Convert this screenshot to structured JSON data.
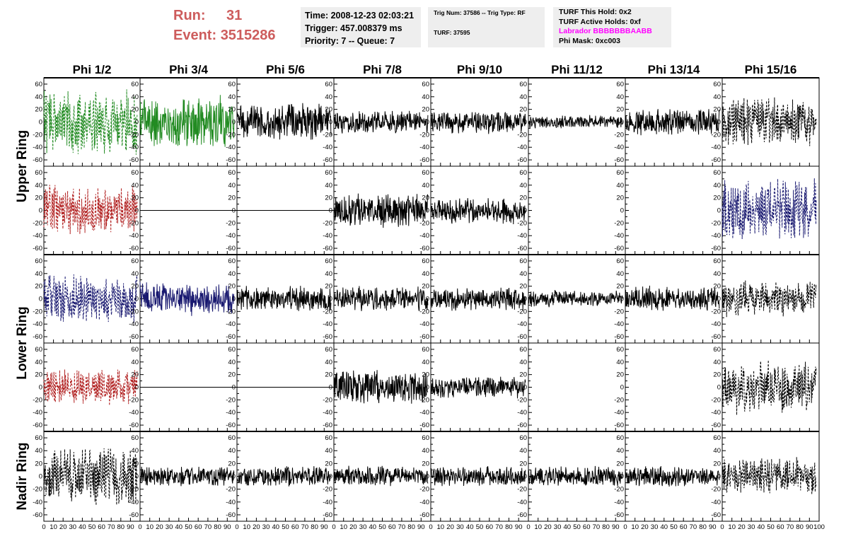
{
  "header": {
    "run_label": "Run:",
    "run_value": "31",
    "event_label": "Event:",
    "event_value": "3515286",
    "time": "Time: 2008-12-23 02:03:21",
    "trigger": "Trigger: 457.008379 ms",
    "priority": "Priority: 7 -- Queue: 7",
    "trig_num": "Trig Num: 37586 -- Trig Type: RF",
    "turf": "TURF: 37595",
    "turf_this_hold": "TURF This Hold: 0x2",
    "turf_active_holds": "TURF Active Holds: 0xf",
    "labrador": "Labrador BBBBBBBAABB",
    "phi_mask": "Phi Mask: 0xc003",
    "labrador_color": "#ff00ff",
    "run_color": "#cd5c5c"
  },
  "chart_data": {
    "type": "line",
    "title": "",
    "columns": [
      "Phi 1/2",
      "Phi 3/4",
      "Phi 5/6",
      "Phi 7/8",
      "Phi 9/10",
      "Phi 11/12",
      "Phi 13/14",
      "Phi 15/16"
    ],
    "ring_labels": [
      {
        "label": "Upper Ring",
        "rows": [
          0,
          1
        ]
      },
      {
        "label": "Lower Ring",
        "rows": [
          2,
          3
        ]
      },
      {
        "label": "Nadir Ring",
        "rows": [
          4
        ]
      }
    ],
    "xlim": [
      0,
      100
    ],
    "ylim": [
      -70,
      70
    ],
    "x_ticks": [
      0,
      10,
      20,
      30,
      40,
      50,
      60,
      70,
      80,
      90,
      100
    ],
    "y_ticks": [
      -60,
      -40,
      -20,
      0,
      20,
      40,
      60
    ],
    "waveform_x_range": [
      0,
      97
    ],
    "panels": [
      [
        {
          "color": "#228b22",
          "dashed": true,
          "amp": 38,
          "sd": 1
        },
        {
          "color": "#228b22",
          "dashed": false,
          "amp": 32,
          "sd": 2
        },
        {
          "color": "#000000",
          "dashed": false,
          "amp": 22,
          "sd": 3
        },
        {
          "color": "#000000",
          "dashed": false,
          "amp": 14,
          "sd": 4
        },
        {
          "color": "#000000",
          "dashed": false,
          "amp": 14,
          "sd": 5
        },
        {
          "color": "#000000",
          "dashed": false,
          "amp": 8,
          "sd": 6
        },
        {
          "color": "#000000",
          "dashed": false,
          "amp": 16,
          "sd": 7
        },
        {
          "color": "#000000",
          "dashed": true,
          "amp": 30,
          "sd": 8
        }
      ],
      [
        {
          "color": "#b22222",
          "dashed": true,
          "amp": 30,
          "sd": 11
        },
        {
          "color": "#000000",
          "dashed": false,
          "amp": 0,
          "sd": 12
        },
        {
          "color": "#000000",
          "dashed": false,
          "amp": 0,
          "sd": 13
        },
        {
          "color": "#000000",
          "dashed": false,
          "amp": 20,
          "sd": 14
        },
        {
          "color": "#000000",
          "dashed": false,
          "amp": 16,
          "sd": 15
        },
        null,
        null,
        {
          "color": "#191970",
          "dashed": true,
          "amp": 38,
          "sd": 18
        }
      ],
      [
        {
          "color": "#191970",
          "dashed": true,
          "amp": 32,
          "sd": 21
        },
        {
          "color": "#191970",
          "dashed": false,
          "amp": 20,
          "sd": 22
        },
        {
          "color": "#000000",
          "dashed": false,
          "amp": 15,
          "sd": 23
        },
        {
          "color": "#000000",
          "dashed": false,
          "amp": 15,
          "sd": 24
        },
        {
          "color": "#000000",
          "dashed": false,
          "amp": 14,
          "sd": 25
        },
        {
          "color": "#000000",
          "dashed": false,
          "amp": 10,
          "sd": 26
        },
        {
          "color": "#000000",
          "dashed": false,
          "amp": 15,
          "sd": 27
        },
        {
          "color": "#000000",
          "dashed": true,
          "amp": 22,
          "sd": 28
        }
      ],
      [
        {
          "color": "#b22222",
          "dashed": true,
          "amp": 22,
          "sd": 31
        },
        {
          "color": "#000000",
          "dashed": false,
          "amp": 0,
          "sd": 32
        },
        {
          "color": "#000000",
          "dashed": false,
          "amp": 0,
          "sd": 33
        },
        {
          "color": "#000000",
          "dashed": false,
          "amp": 20,
          "sd": 34
        },
        {
          "color": "#000000",
          "dashed": false,
          "amp": 14,
          "sd": 35
        },
        null,
        null,
        {
          "color": "#000000",
          "dashed": true,
          "amp": 32,
          "sd": 38
        }
      ],
      [
        {
          "color": "#000000",
          "dashed": true,
          "amp": 34,
          "sd": 41
        },
        {
          "color": "#000000",
          "dashed": false,
          "amp": 12,
          "sd": 42
        },
        {
          "color": "#000000",
          "dashed": false,
          "amp": 12,
          "sd": 43
        },
        {
          "color": "#000000",
          "dashed": false,
          "amp": 12,
          "sd": 44
        },
        {
          "color": "#000000",
          "dashed": false,
          "amp": 12,
          "sd": 45
        },
        {
          "color": "#000000",
          "dashed": false,
          "amp": 12,
          "sd": 46
        },
        {
          "color": "#000000",
          "dashed": false,
          "amp": 12,
          "sd": 47
        },
        {
          "color": "#000000",
          "dashed": true,
          "amp": 22,
          "sd": 48
        }
      ]
    ]
  }
}
